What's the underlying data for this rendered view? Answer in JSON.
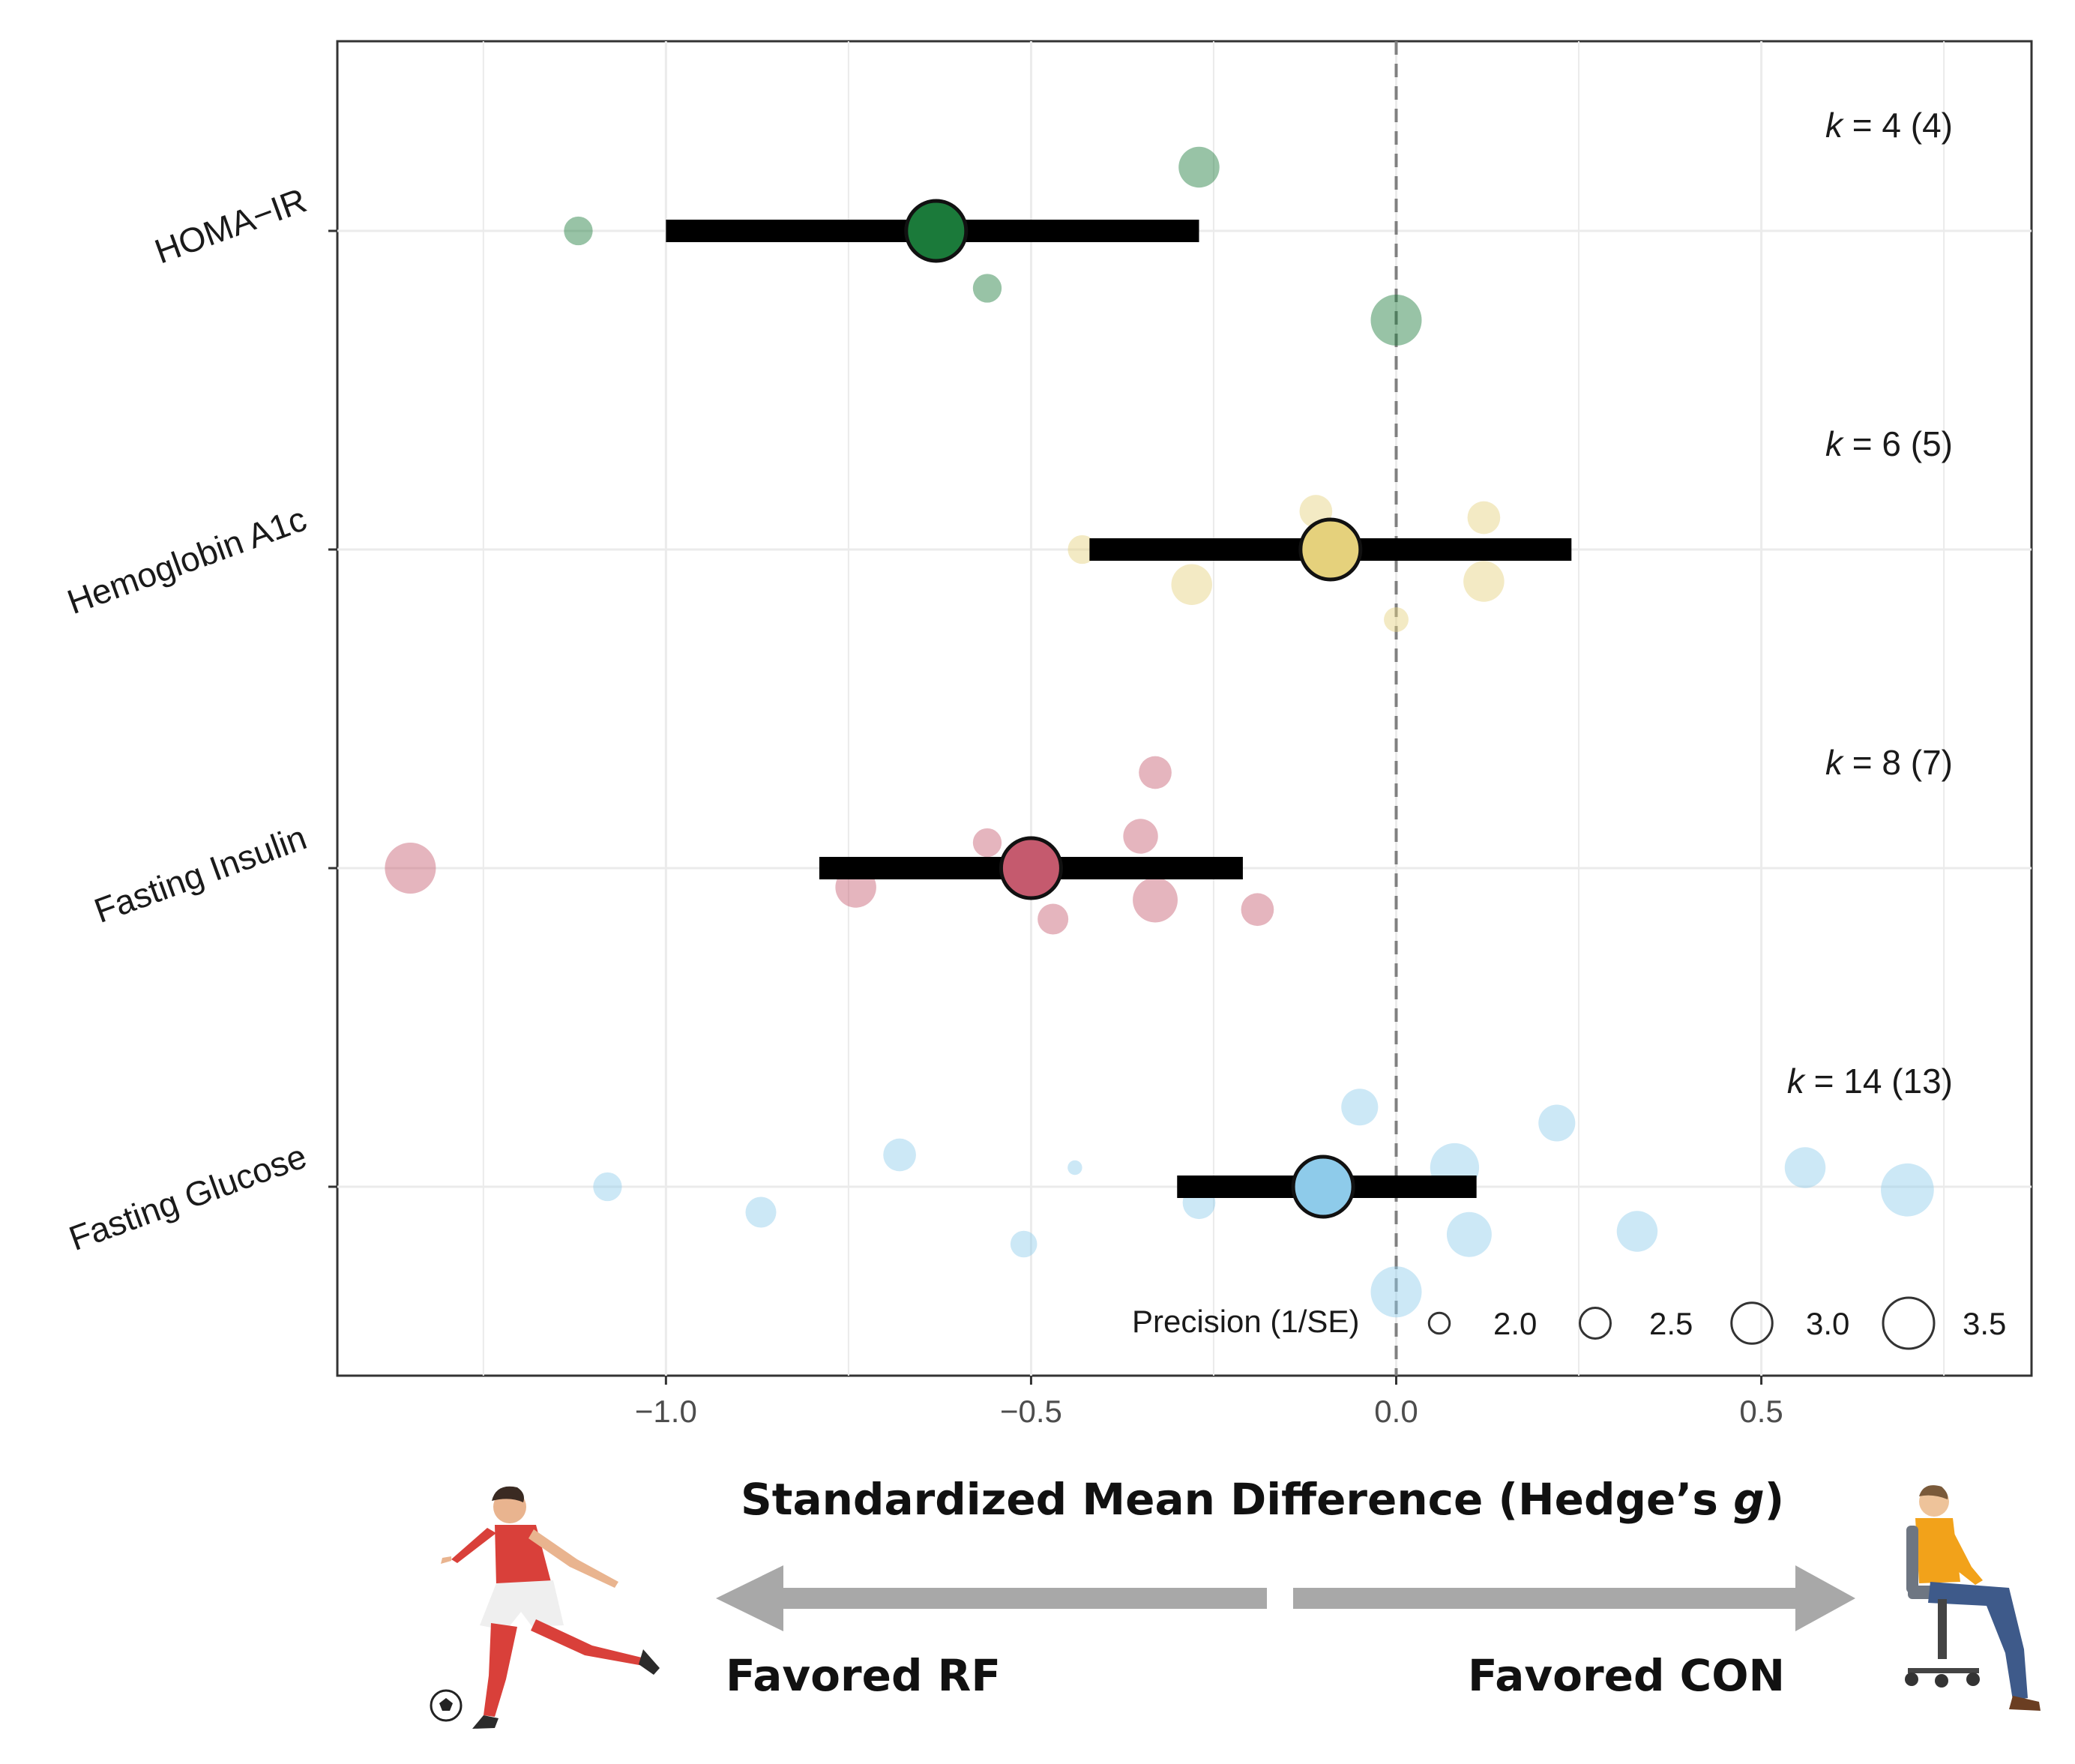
{
  "chart_data": {
    "type": "forest",
    "xlabel": "Standardized Mean Difference (Hedge’s g)",
    "xlabel_main": "Standardized Mean Difference (Hedge’s ",
    "xlabel_italic": "g",
    "xlabel_close": ")",
    "xlim": [
      -1.45,
      0.87
    ],
    "xticks": [
      {
        "value": -1.0,
        "label": "−1.0"
      },
      {
        "value": -0.5,
        "label": "−0.5"
      },
      {
        "value": 0.0,
        "label": "0.0"
      },
      {
        "value": 0.5,
        "label": "0.5"
      }
    ],
    "reference_line": 0,
    "left_direction_label": "Favored RF",
    "right_direction_label": "Favored CON",
    "legend": {
      "title": "Precision (1/SE)",
      "items": [
        {
          "value": 2.0,
          "label": "2.0"
        },
        {
          "value": 2.5,
          "label": "2.5"
        },
        {
          "value": 3.0,
          "label": "3.0"
        },
        {
          "value": 3.5,
          "label": "3.5"
        }
      ]
    },
    "outcomes": [
      {
        "name": "HOMA−IR",
        "k_prefix": "k",
        "k_text": " = 4 (4)",
        "color": "#1b7a3a",
        "estimate": -0.63,
        "ci": [
          -1.0,
          -0.27
        ],
        "studies": [
          {
            "g": -0.27,
            "offset": 0.2,
            "precision": 3.0
          },
          {
            "g": -1.12,
            "offset": 0.0,
            "precision": 2.4
          },
          {
            "g": -0.56,
            "offset": -0.18,
            "precision": 2.4
          },
          {
            "g": 0.0,
            "offset": -0.28,
            "precision": 3.5
          }
        ]
      },
      {
        "name": "Hemoglobin A1c",
        "k_prefix": "k",
        "k_text": " = 6 (5)",
        "color": "#e5d17c",
        "estimate": -0.09,
        "ci": [
          -0.42,
          0.24
        ],
        "studies": [
          {
            "g": -0.11,
            "offset": 0.12,
            "precision": 2.6
          },
          {
            "g": 0.12,
            "offset": 0.1,
            "precision": 2.6
          },
          {
            "g": -0.43,
            "offset": 0.0,
            "precision": 2.4
          },
          {
            "g": -0.28,
            "offset": -0.11,
            "precision": 3.0
          },
          {
            "g": 0.12,
            "offset": -0.1,
            "precision": 3.0
          },
          {
            "g": 0.0,
            "offset": -0.22,
            "precision": 2.2
          }
        ]
      },
      {
        "name": "Fasting Insulin",
        "k_prefix": "k",
        "k_text": " = 8 (7)",
        "color": "#c55a6e",
        "estimate": -0.5,
        "ci": [
          -0.79,
          -0.21
        ],
        "studies": [
          {
            "g": -0.33,
            "offset": 0.3,
            "precision": 2.6
          },
          {
            "g": -0.56,
            "offset": 0.08,
            "precision": 2.4
          },
          {
            "g": -0.35,
            "offset": 0.1,
            "precision": 2.7
          },
          {
            "g": -1.35,
            "offset": 0.0,
            "precision": 3.5
          },
          {
            "g": -0.74,
            "offset": -0.06,
            "precision": 3.0
          },
          {
            "g": -0.33,
            "offset": -0.1,
            "precision": 3.2
          },
          {
            "g": -0.19,
            "offset": -0.13,
            "precision": 2.6
          },
          {
            "g": -0.47,
            "offset": -0.16,
            "precision": 2.5
          }
        ]
      },
      {
        "name": "Fasting Glucose",
        "k_prefix": "k",
        "k_text": " = 14 (13)",
        "color": "#8ecbea",
        "estimate": -0.1,
        "ci": [
          -0.3,
          0.11
        ],
        "studies": [
          {
            "g": -0.05,
            "offset": 0.25,
            "precision": 2.8
          },
          {
            "g": 0.22,
            "offset": 0.2,
            "precision": 2.8
          },
          {
            "g": -0.68,
            "offset": 0.1,
            "precision": 2.6
          },
          {
            "g": -0.44,
            "offset": 0.06,
            "precision": 1.7
          },
          {
            "g": 0.08,
            "offset": 0.06,
            "precision": 3.4
          },
          {
            "g": 0.56,
            "offset": 0.06,
            "precision": 3.0
          },
          {
            "g": -1.08,
            "offset": 0.0,
            "precision": 2.4
          },
          {
            "g": 0.7,
            "offset": -0.01,
            "precision": 3.6
          },
          {
            "g": -0.87,
            "offset": -0.08,
            "precision": 2.5
          },
          {
            "g": -0.27,
            "offset": -0.05,
            "precision": 2.6
          },
          {
            "g": -0.51,
            "offset": -0.18,
            "precision": 2.3
          },
          {
            "g": 0.1,
            "offset": -0.15,
            "precision": 3.2
          },
          {
            "g": 0.33,
            "offset": -0.14,
            "precision": 3.0
          },
          {
            "g": 0.0,
            "offset": -0.33,
            "precision": 3.5
          }
        ]
      }
    ]
  }
}
